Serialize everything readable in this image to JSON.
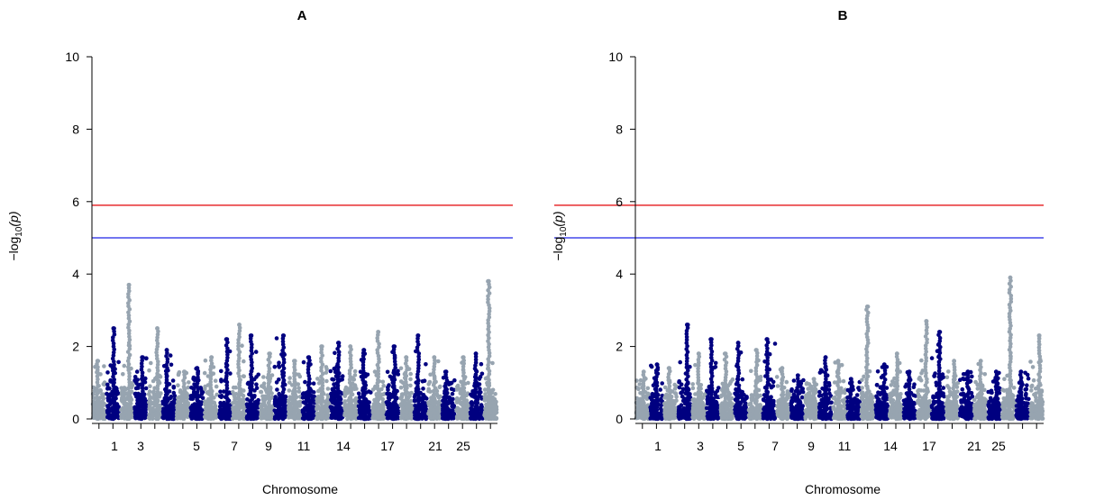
{
  "chart_data": [
    {
      "type": "scatter",
      "title": "A",
      "xlabel": "Chromosome",
      "ylabel_prefix": "−log",
      "ylabel_sub": "10",
      "ylabel_suffix": "(p)",
      "ylim": [
        0,
        10
      ],
      "yticks": [
        0,
        2,
        4,
        6,
        8,
        10
      ],
      "xtick_labels": [
        "1",
        "3",
        "5",
        "7",
        "9",
        "11",
        "14",
        "17",
        "21",
        "25"
      ],
      "chromosome_count": 29,
      "colors": {
        "odd": "#97a4b0",
        "even": "#000080",
        "genome_wide_line": "#e41a1c",
        "suggestive_line": "#1f23e8"
      },
      "thresholds": {
        "genome_wide": 5.9,
        "suggestive": 5.0
      },
      "chromosome_max_neglog10p": [
        1.6,
        2.5,
        3.7,
        1.7,
        2.5,
        1.9,
        1.3,
        1.4,
        1.7,
        2.2,
        2.6,
        2.3,
        1.8,
        2.3,
        1.6,
        1.7,
        2.0,
        2.1,
        2.0,
        1.9,
        2.4,
        2.0,
        1.7,
        2.3,
        1.7,
        1.3,
        1.7,
        1.8,
        3.8
      ]
    },
    {
      "type": "scatter",
      "title": "B",
      "xlabel": "Chromosome",
      "ylabel_prefix": "−log",
      "ylabel_sub": "10",
      "ylabel_suffix": "(p)",
      "ylim": [
        0,
        10
      ],
      "yticks": [
        0,
        2,
        4,
        6,
        8,
        10
      ],
      "xtick_labels": [
        "1",
        "3",
        "5",
        "7",
        "9",
        "11",
        "14",
        "17",
        "21",
        "25"
      ],
      "chromosome_count": 29,
      "colors": {
        "odd": "#97a4b0",
        "even": "#000080",
        "genome_wide_line": "#e41a1c",
        "suggestive_line": "#1f23e8"
      },
      "thresholds": {
        "genome_wide": 5.9,
        "suggestive": 5.0
      },
      "chromosome_max_neglog10p": [
        1.3,
        1.5,
        1.4,
        2.6,
        1.8,
        2.2,
        1.8,
        2.1,
        1.9,
        2.2,
        1.4,
        1.2,
        1.1,
        1.7,
        1.6,
        1.1,
        3.1,
        1.5,
        1.8,
        1.3,
        2.7,
        2.4,
        1.6,
        1.3,
        1.6,
        1.3,
        3.9,
        1.3,
        2.3
      ]
    }
  ]
}
